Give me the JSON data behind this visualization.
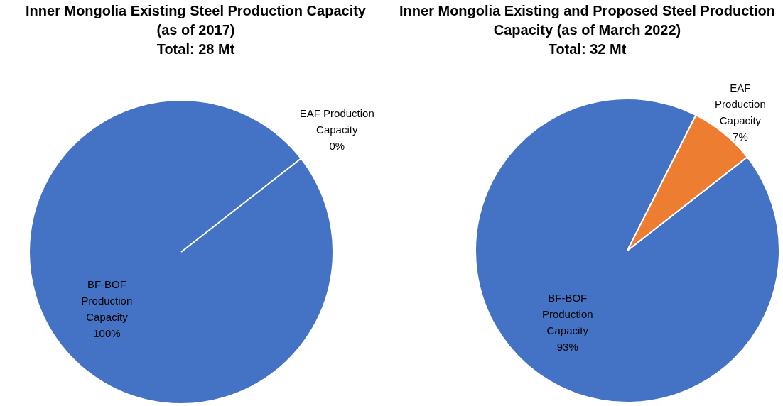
{
  "chart_data": [
    {
      "type": "pie",
      "title": "Inner Mongolia Existing Steel Production Capacity (as of 2017)",
      "subtitle": "Total: 28 Mt",
      "categories": [
        "BF-BOF Production Capacity",
        "EAF Production Capacity"
      ],
      "values": [
        100,
        0
      ],
      "colors": [
        "#4472c4",
        "#ed7d31"
      ],
      "value_labels": [
        "100%",
        "0%"
      ],
      "legend": false
    },
    {
      "type": "pie",
      "title": "Inner Mongolia Existing and Proposed Steel Production Capacity (as of March 2022)",
      "subtitle": "Total: 32 Mt",
      "categories": [
        "BF-BOF Production Capacity",
        "EAF Production Capacity"
      ],
      "values": [
        93,
        7
      ],
      "colors": [
        "#4472c4",
        "#ed7d31"
      ],
      "value_labels": [
        "93%",
        "7%"
      ],
      "legend": false
    }
  ]
}
